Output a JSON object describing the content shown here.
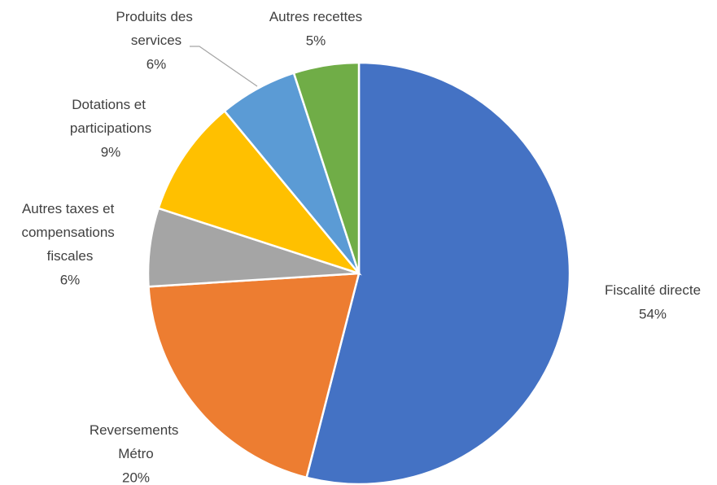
{
  "chart_data": {
    "type": "pie",
    "categories": [
      "Fiscalité directe",
      "Reversements Métro",
      "Autres taxes et compensations fiscales",
      "Dotations et participations",
      "Produits des services",
      "Autres recettes"
    ],
    "values": [
      54,
      20,
      6,
      9,
      6,
      5
    ],
    "value_labels": [
      "54%",
      "20%",
      "6%",
      "9%",
      "6%",
      "5%"
    ],
    "colors": [
      "#4472c4",
      "#ed7d31",
      "#a5a5a5",
      "#ffc000",
      "#5b9bd5",
      "#70ad47"
    ]
  }
}
